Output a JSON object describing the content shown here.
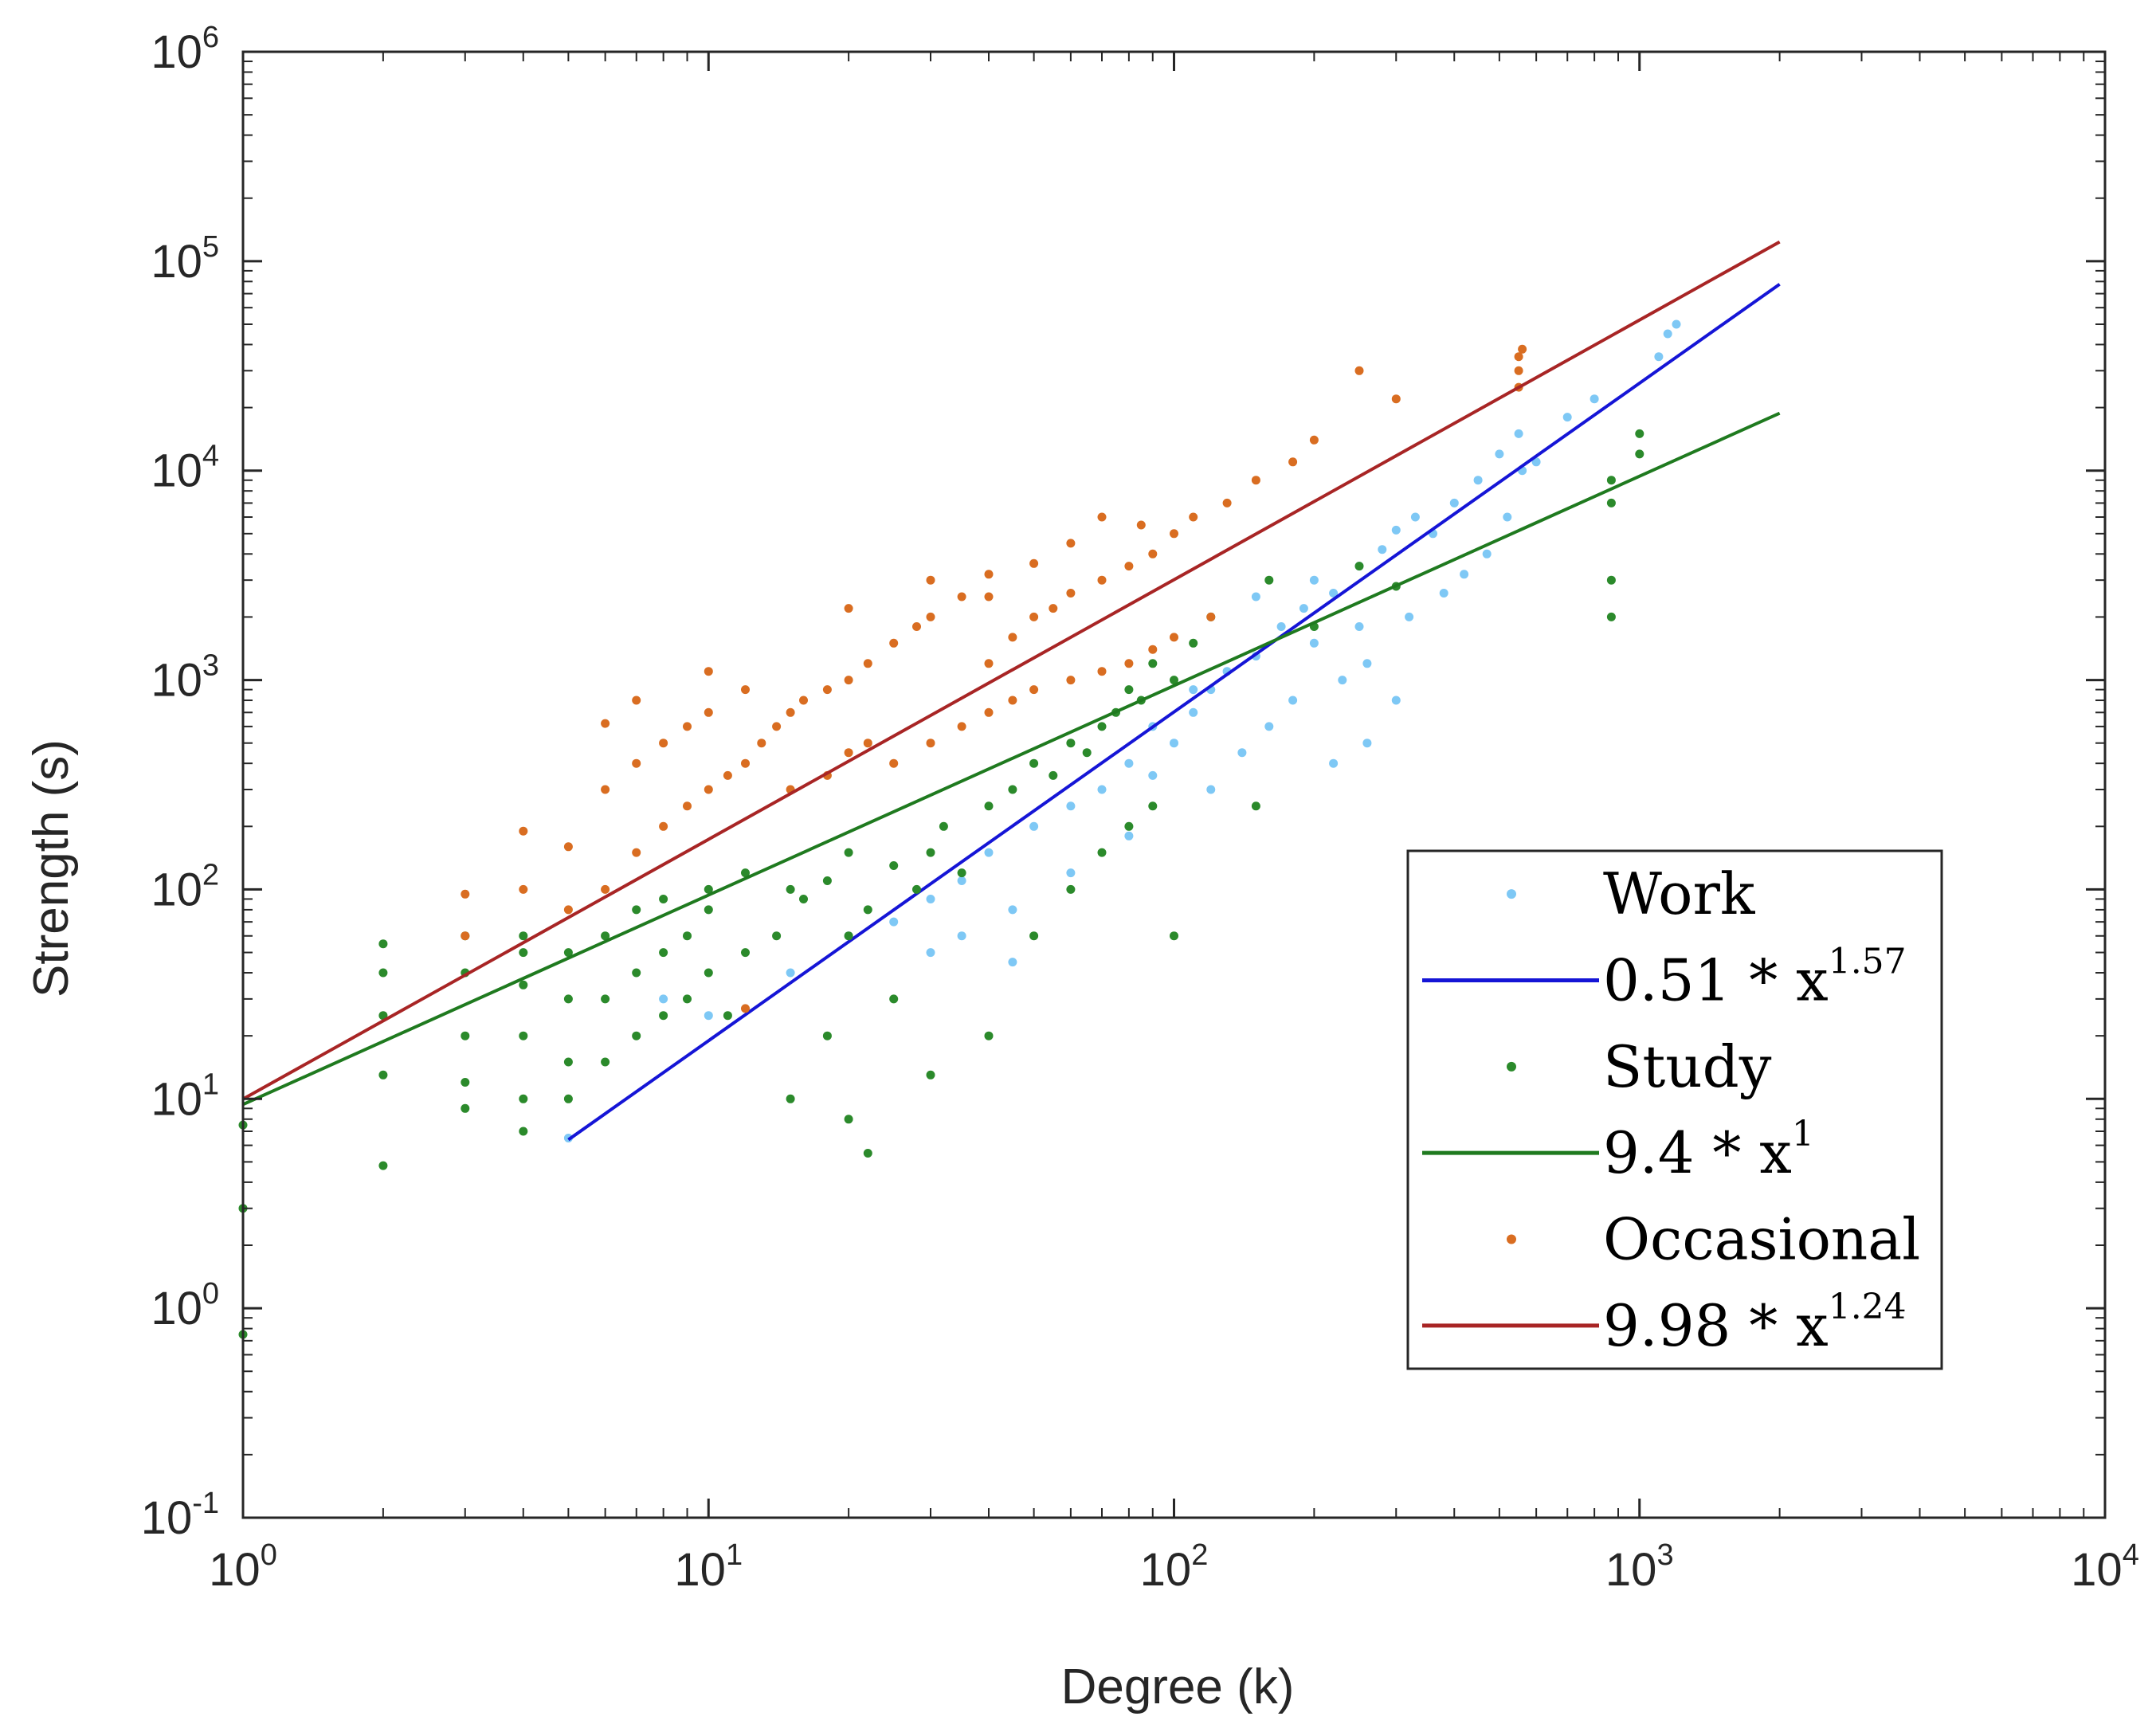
{
  "chart_data": {
    "type": "scatter",
    "xscale": "log",
    "yscale": "log",
    "xlim": [
      1,
      10000
    ],
    "ylim": [
      0.1,
      1000000
    ],
    "xlabel": "Degree (k)",
    "ylabel": "Strength (s)",
    "xticks": [
      {
        "base": "10",
        "exp": "0",
        "value": 1
      },
      {
        "base": "10",
        "exp": "1",
        "value": 10
      },
      {
        "base": "10",
        "exp": "2",
        "value": 100
      },
      {
        "base": "10",
        "exp": "3",
        "value": 1000
      },
      {
        "base": "10",
        "exp": "4",
        "value": 10000
      }
    ],
    "yticks": [
      {
        "base": "10",
        "exp": "-1",
        "value": 0.1
      },
      {
        "base": "10",
        "exp": "0",
        "value": 1
      },
      {
        "base": "10",
        "exp": "1",
        "value": 10
      },
      {
        "base": "10",
        "exp": "2",
        "value": 100
      },
      {
        "base": "10",
        "exp": "3",
        "value": 1000
      },
      {
        "base": "10",
        "exp": "4",
        "value": 10000
      },
      {
        "base": "10",
        "exp": "5",
        "value": 100000
      },
      {
        "base": "10",
        "exp": "6",
        "value": 1000000
      }
    ],
    "legend_position": "lower-right",
    "series": [
      {
        "name": "Work",
        "kind": "scatter",
        "color": "#7ec8f5",
        "points": [
          [
            5,
            6.5
          ],
          [
            8,
            30
          ],
          [
            10,
            25
          ],
          [
            15,
            40
          ],
          [
            20,
            60
          ],
          [
            25,
            70
          ],
          [
            30,
            90
          ],
          [
            35,
            110
          ],
          [
            40,
            150
          ],
          [
            45,
            80
          ],
          [
            50,
            200
          ],
          [
            60,
            250
          ],
          [
            70,
            300
          ],
          [
            80,
            400
          ],
          [
            90,
            350
          ],
          [
            100,
            500
          ],
          [
            110,
            700
          ],
          [
            120,
            900
          ],
          [
            130,
            1100
          ],
          [
            150,
            1300
          ],
          [
            170,
            1800
          ],
          [
            190,
            2200
          ],
          [
            200,
            1500
          ],
          [
            220,
            2600
          ],
          [
            250,
            3500
          ],
          [
            280,
            4200
          ],
          [
            300,
            5200
          ],
          [
            330,
            6000
          ],
          [
            360,
            5000
          ],
          [
            400,
            7000
          ],
          [
            450,
            9000
          ],
          [
            500,
            12000
          ],
          [
            550,
            15000
          ],
          [
            560,
            10000
          ],
          [
            600,
            11000
          ],
          [
            700,
            18000
          ],
          [
            800,
            22000
          ],
          [
            1100,
            35000
          ],
          [
            1150,
            45000
          ],
          [
            1200,
            50000
          ],
          [
            60,
            120
          ],
          [
            80,
            180
          ],
          [
            120,
            300
          ],
          [
            140,
            450
          ],
          [
            160,
            600
          ],
          [
            180,
            800
          ],
          [
            230,
            1000
          ],
          [
            260,
            1200
          ],
          [
            320,
            2000
          ],
          [
            380,
            2600
          ],
          [
            420,
            3200
          ],
          [
            470,
            4000
          ],
          [
            520,
            6000
          ],
          [
            90,
            600
          ],
          [
            110,
            900
          ],
          [
            150,
            2500
          ],
          [
            200,
            3000
          ],
          [
            250,
            1800
          ],
          [
            300,
            800
          ],
          [
            260,
            500
          ],
          [
            220,
            400
          ],
          [
            45,
            45
          ],
          [
            35,
            60
          ],
          [
            30,
            50
          ]
        ]
      },
      {
        "name": "0.51 * x^1.57",
        "label_base": "0.51 * x",
        "label_exp": "1.57",
        "kind": "line",
        "color": "#1515d6",
        "a": 0.51,
        "b": 1.57,
        "xrange": [
          5,
          2000
        ]
      },
      {
        "name": "Study",
        "kind": "scatter",
        "color": "#2b8a2b",
        "points": [
          [
            1,
            0.75
          ],
          [
            1,
            3
          ],
          [
            1,
            7.5
          ],
          [
            2,
            4.8
          ],
          [
            2,
            13
          ],
          [
            2,
            25
          ],
          [
            2,
            40
          ],
          [
            2,
            55
          ],
          [
            3,
            9
          ],
          [
            3,
            12
          ],
          [
            3,
            20
          ],
          [
            3,
            40
          ],
          [
            3,
            60
          ],
          [
            4,
            7
          ],
          [
            4,
            10
          ],
          [
            4,
            20
          ],
          [
            4,
            35
          ],
          [
            4,
            50
          ],
          [
            4,
            60
          ],
          [
            5,
            10
          ],
          [
            5,
            15
          ],
          [
            5,
            30
          ],
          [
            5,
            50
          ],
          [
            6,
            15
          ],
          [
            6,
            30
          ],
          [
            6,
            60
          ],
          [
            7,
            20
          ],
          [
            7,
            40
          ],
          [
            7,
            80
          ],
          [
            8,
            25
          ],
          [
            8,
            50
          ],
          [
            8,
            90
          ],
          [
            9,
            30
          ],
          [
            9,
            60
          ],
          [
            10,
            40
          ],
          [
            10,
            80
          ],
          [
            10,
            100
          ],
          [
            11,
            25
          ],
          [
            12,
            50
          ],
          [
            12,
            120
          ],
          [
            14,
            60
          ],
          [
            15,
            100
          ],
          [
            16,
            90
          ],
          [
            18,
            110
          ],
          [
            20,
            60
          ],
          [
            20,
            150
          ],
          [
            22,
            80
          ],
          [
            25,
            130
          ],
          [
            28,
            100
          ],
          [
            30,
            13
          ],
          [
            30,
            150
          ],
          [
            32,
            200
          ],
          [
            35,
            120
          ],
          [
            40,
            250
          ],
          [
            45,
            300
          ],
          [
            50,
            400
          ],
          [
            55,
            350
          ],
          [
            60,
            500
          ],
          [
            65,
            450
          ],
          [
            70,
            600
          ],
          [
            75,
            700
          ],
          [
            80,
            900
          ],
          [
            85,
            800
          ],
          [
            90,
            1200
          ],
          [
            100,
            1000
          ],
          [
            110,
            1500
          ],
          [
            120,
            2000
          ],
          [
            100,
            60
          ],
          [
            150,
            250
          ],
          [
            160,
            3000
          ],
          [
            200,
            1800
          ],
          [
            250,
            3500
          ],
          [
            300,
            2800
          ],
          [
            870,
            2000
          ],
          [
            870,
            3000
          ],
          [
            870,
            7000
          ],
          [
            870,
            9000
          ],
          [
            1000,
            12000
          ],
          [
            1000,
            15000
          ],
          [
            25,
            30
          ],
          [
            18,
            20
          ],
          [
            15,
            10
          ],
          [
            20,
            8
          ],
          [
            22,
            5.5
          ],
          [
            40,
            20
          ],
          [
            50,
            60
          ],
          [
            60,
            100
          ],
          [
            70,
            150
          ],
          [
            80,
            200
          ],
          [
            90,
            250
          ]
        ]
      },
      {
        "name": "9.4 * x^1",
        "label_base": "9.4 * x",
        "label_exp": "1",
        "kind": "line",
        "color": "#1f7a1f",
        "a": 9.4,
        "b": 1.0,
        "xrange": [
          1,
          2000
        ]
      },
      {
        "name": "Occasional",
        "kind": "scatter",
        "color": "#d96d21",
        "points": [
          [
            3,
            60
          ],
          [
            3,
            95
          ],
          [
            4,
            100
          ],
          [
            4,
            190
          ],
          [
            5,
            80
          ],
          [
            5,
            160
          ],
          [
            6,
            100
          ],
          [
            6,
            300
          ],
          [
            6,
            620
          ],
          [
            7,
            150
          ],
          [
            7,
            400
          ],
          [
            7,
            800
          ],
          [
            8,
            200
          ],
          [
            8,
            500
          ],
          [
            9,
            250
          ],
          [
            9,
            600
          ],
          [
            10,
            300
          ],
          [
            10,
            700
          ],
          [
            10,
            1100
          ],
          [
            11,
            350
          ],
          [
            12,
            400
          ],
          [
            12,
            900
          ],
          [
            13,
            500
          ],
          [
            14,
            600
          ],
          [
            15,
            700
          ],
          [
            16,
            800
          ],
          [
            18,
            900
          ],
          [
            20,
            1000
          ],
          [
            20,
            2200
          ],
          [
            22,
            1200
          ],
          [
            25,
            1500
          ],
          [
            28,
            1800
          ],
          [
            30,
            2000
          ],
          [
            30,
            3000
          ],
          [
            35,
            2500
          ],
          [
            40,
            1200
          ],
          [
            40,
            3200
          ],
          [
            45,
            1600
          ],
          [
            50,
            2000
          ],
          [
            50,
            3600
          ],
          [
            55,
            2200
          ],
          [
            60,
            2600
          ],
          [
            60,
            4500
          ],
          [
            70,
            3000
          ],
          [
            80,
            3500
          ],
          [
            90,
            4000
          ],
          [
            100,
            5000
          ],
          [
            110,
            6000
          ],
          [
            130,
            7000
          ],
          [
            150,
            9000
          ],
          [
            180,
            11000
          ],
          [
            200,
            14000
          ],
          [
            250,
            30000
          ],
          [
            300,
            22000
          ],
          [
            550,
            25000
          ],
          [
            550,
            30000
          ],
          [
            550,
            35000
          ],
          [
            560,
            38000
          ],
          [
            25,
            400
          ],
          [
            30,
            500
          ],
          [
            35,
            600
          ],
          [
            40,
            700
          ],
          [
            45,
            800
          ],
          [
            50,
            900
          ],
          [
            60,
            1000
          ],
          [
            70,
            1100
          ],
          [
            80,
            1200
          ],
          [
            90,
            1400
          ],
          [
            100,
            1600
          ],
          [
            120,
            2000
          ],
          [
            15,
            300
          ],
          [
            18,
            350
          ],
          [
            20,
            450
          ],
          [
            22,
            500
          ],
          [
            12,
            27
          ],
          [
            70,
            6000
          ],
          [
            85,
            5500
          ],
          [
            40,
            2500
          ]
        ]
      },
      {
        "name": "9.98 * x^1.24",
        "label_base": "9.98 * x",
        "label_exp": "1.24",
        "kind": "line",
        "color": "#a82525",
        "a": 9.98,
        "b": 1.24,
        "xrange": [
          1,
          2000
        ]
      }
    ]
  }
}
